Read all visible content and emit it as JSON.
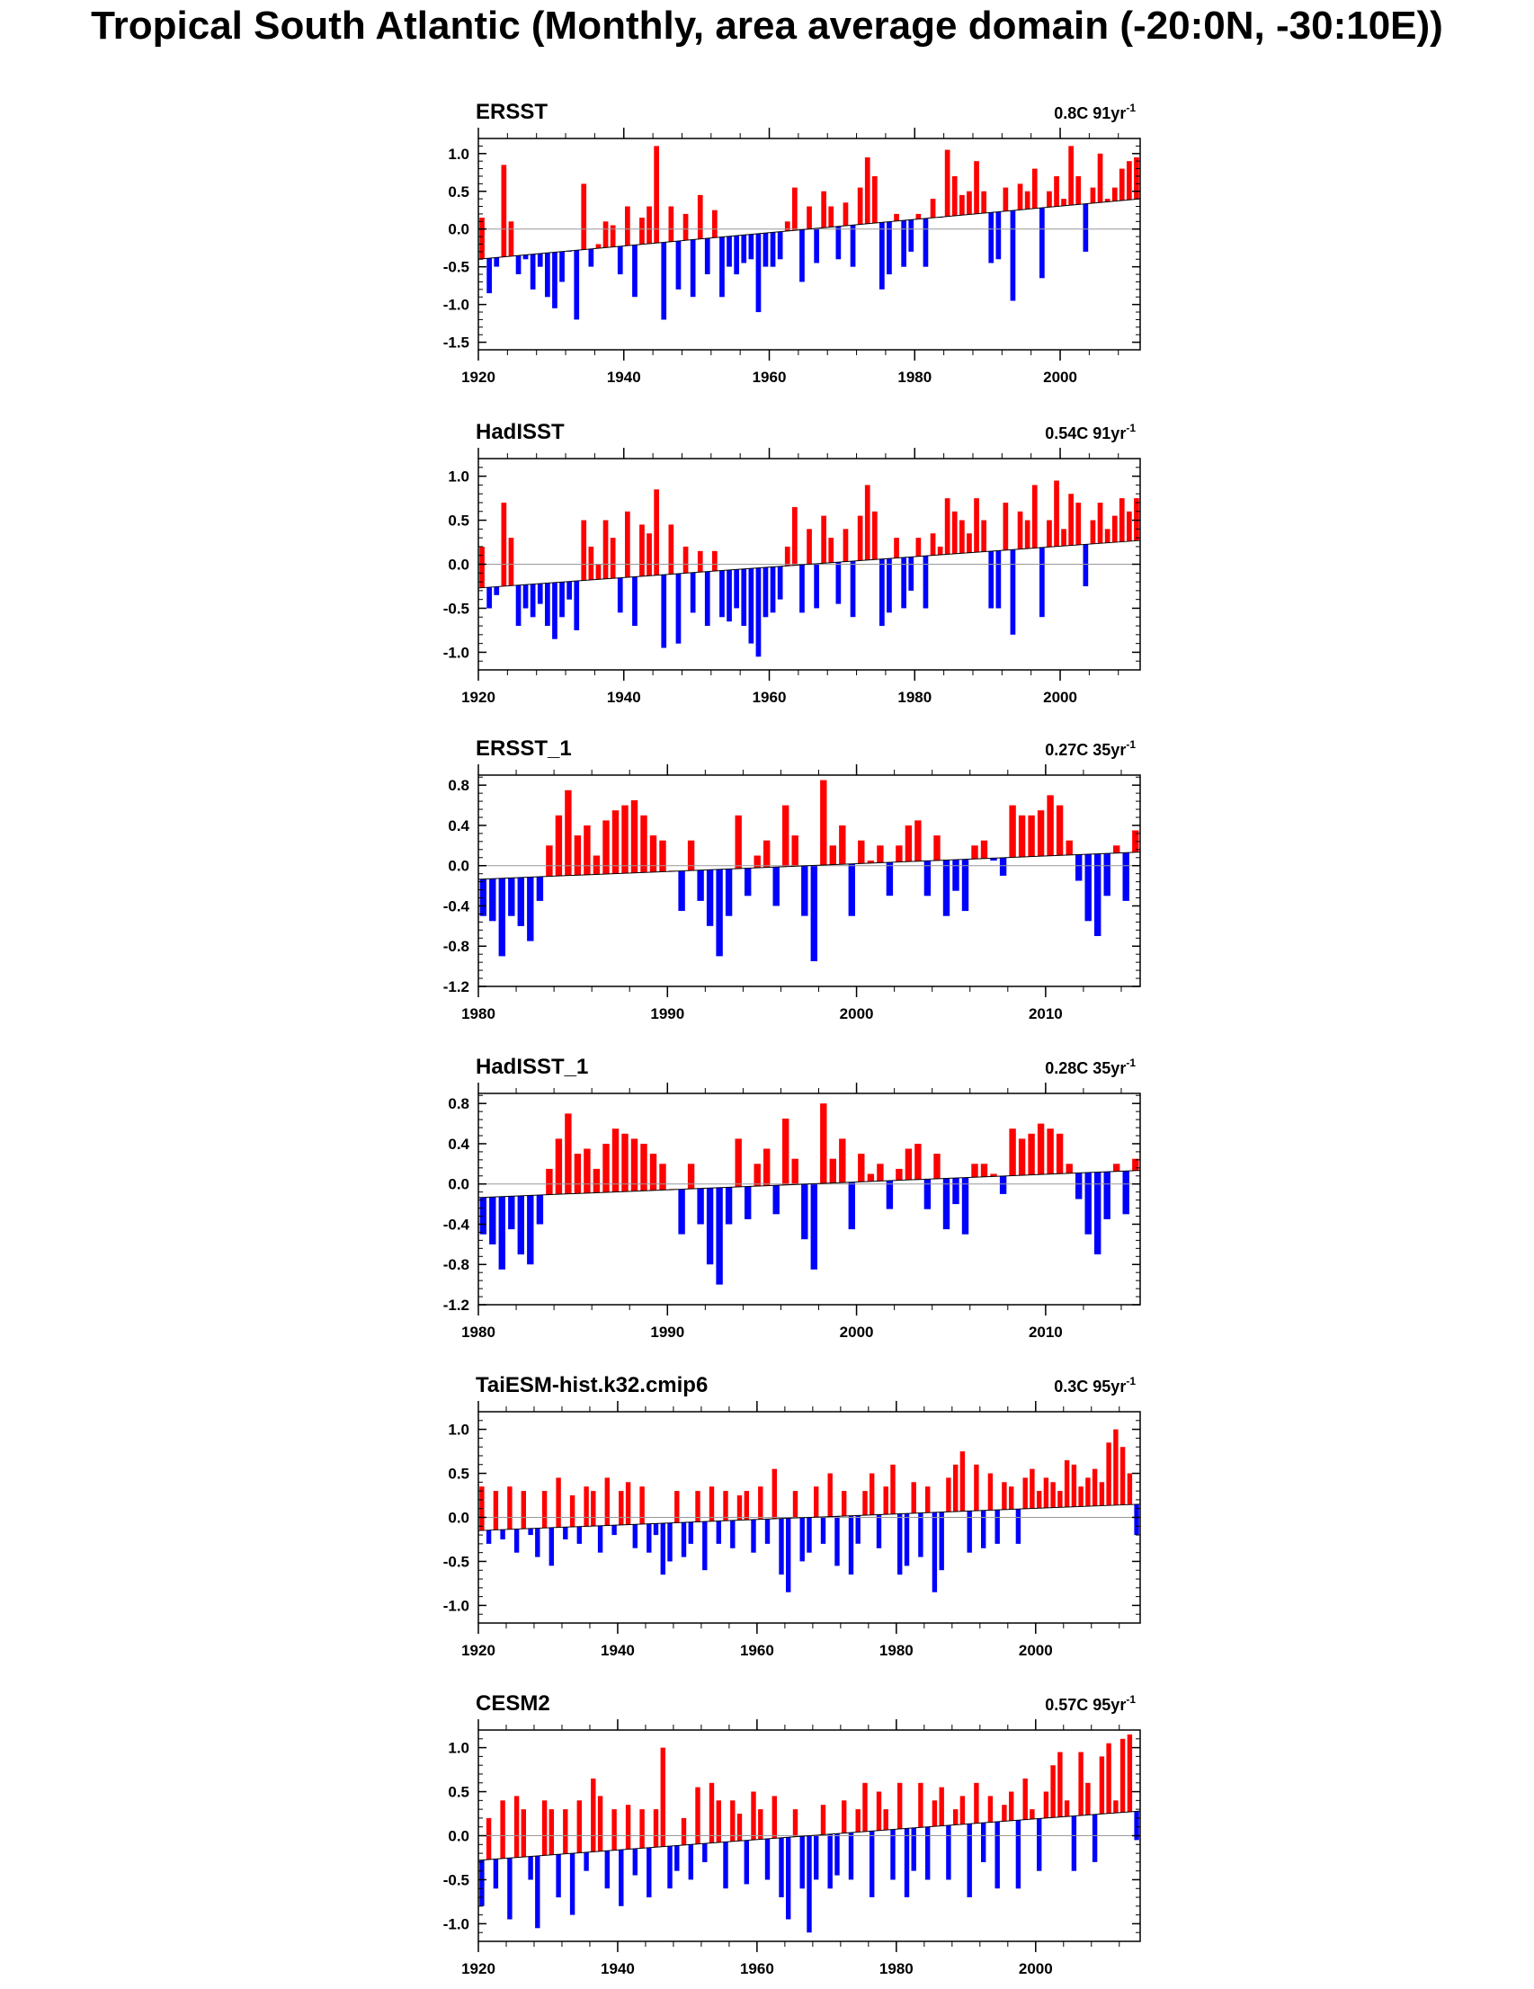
{
  "title": "Tropical South Atlantic (Monthly, area average domain (-20:0N, -30:10E))",
  "colors": {
    "positive": "#ff0000",
    "negative": "#0000ff",
    "trend": "#000000",
    "zero": "#999999"
  },
  "chart_data": [
    {
      "type": "bar",
      "title": "ERSST",
      "trend_value": "0.8C",
      "trend_period": "91yr",
      "trend_exp": "-1",
      "xlim": [
        1920,
        2011
      ],
      "ylim": [
        -1.6,
        1.2
      ],
      "xticks": [
        1920,
        1940,
        1960,
        1980,
        2000
      ],
      "yticks": [
        1.0,
        0.5,
        0.0,
        -0.5,
        -1.0,
        -1.5
      ],
      "ytick_labels": [
        "1.0",
        "0.5",
        "0.0",
        "-0.5",
        "-1.0",
        "-1.5"
      ],
      "ydec": 1,
      "trend_start": -0.4,
      "trend_end": 0.4,
      "x": [
        1920,
        1921,
        1922,
        1923,
        1924,
        1925,
        1926,
        1927,
        1928,
        1929,
        1930,
        1931,
        1932,
        1933,
        1934,
        1935,
        1936,
        1937,
        1938,
        1939,
        1940,
        1941,
        1942,
        1943,
        1944,
        1945,
        1946,
        1947,
        1948,
        1949,
        1950,
        1951,
        1952,
        1953,
        1954,
        1955,
        1956,
        1957,
        1958,
        1959,
        1960,
        1961,
        1962,
        1963,
        1964,
        1965,
        1966,
        1967,
        1968,
        1969,
        1970,
        1971,
        1972,
        1973,
        1974,
        1975,
        1976,
        1977,
        1978,
        1979,
        1980,
        1981,
        1982,
        1983,
        1984,
        1985,
        1986,
        1987,
        1988,
        1989,
        1990,
        1991,
        1992,
        1993,
        1994,
        1995,
        1996,
        1997,
        1998,
        1999,
        2000,
        2001,
        2002,
        2003,
        2004,
        2005,
        2006,
        2007,
        2008,
        2009,
        2010
      ],
      "values": [
        0.15,
        -0.85,
        -0.5,
        0.85,
        0.1,
        -0.6,
        -0.4,
        -0.8,
        -0.5,
        -0.9,
        -1.05,
        -0.7,
        -0.3,
        -1.2,
        0.6,
        -0.5,
        -0.2,
        0.1,
        0.05,
        -0.6,
        0.3,
        -0.9,
        0.15,
        0.3,
        1.1,
        -1.2,
        0.3,
        -0.8,
        0.2,
        -0.9,
        0.45,
        -0.6,
        0.25,
        -0.9,
        -0.5,
        -0.6,
        -0.45,
        -0.4,
        -1.1,
        -0.5,
        -0.5,
        -0.4,
        0.1,
        0.55,
        -0.7,
        0.3,
        -0.45,
        0.5,
        0.3,
        -0.4,
        0.35,
        -0.5,
        0.55,
        0.95,
        0.7,
        -0.8,
        -0.6,
        0.2,
        -0.5,
        -0.3,
        0.2,
        -0.5,
        0.4,
        0.15,
        1.05,
        0.7,
        0.45,
        0.5,
        0.9,
        0.5,
        -0.45,
        -0.4,
        0.55,
        -0.95,
        0.6,
        0.5,
        0.8,
        -0.65,
        0.5,
        0.7,
        0.4,
        1.1,
        0.7,
        -0.3,
        0.55,
        1.0,
        0.4,
        0.55,
        0.8,
        0.9,
        0.95
      ]
    },
    {
      "type": "bar",
      "title": "HadISST",
      "trend_value": "0.54C",
      "trend_period": "91yr",
      "trend_exp": "-1",
      "xlim": [
        1920,
        2011
      ],
      "ylim": [
        -1.2,
        1.2
      ],
      "xticks": [
        1920,
        1940,
        1960,
        1980,
        2000
      ],
      "yticks": [
        1.0,
        0.5,
        0.0,
        -0.5,
        -1.0
      ],
      "ytick_labels": [
        "1.0",
        "0.5",
        "0.0",
        "-0.5",
        "-1.0"
      ],
      "ydec": 1,
      "trend_start": -0.27,
      "trend_end": 0.27,
      "x": [
        1920,
        1921,
        1922,
        1923,
        1924,
        1925,
        1926,
        1927,
        1928,
        1929,
        1930,
        1931,
        1932,
        1933,
        1934,
        1935,
        1936,
        1937,
        1938,
        1939,
        1940,
        1941,
        1942,
        1943,
        1944,
        1945,
        1946,
        1947,
        1948,
        1949,
        1950,
        1951,
        1952,
        1953,
        1954,
        1955,
        1956,
        1957,
        1958,
        1959,
        1960,
        1961,
        1962,
        1963,
        1964,
        1965,
        1966,
        1967,
        1968,
        1969,
        1970,
        1971,
        1972,
        1973,
        1974,
        1975,
        1976,
        1977,
        1978,
        1979,
        1980,
        1981,
        1982,
        1983,
        1984,
        1985,
        1986,
        1987,
        1988,
        1989,
        1990,
        1991,
        1992,
        1993,
        1994,
        1995,
        1996,
        1997,
        1998,
        1999,
        2000,
        2001,
        2002,
        2003,
        2004,
        2005,
        2006,
        2007,
        2008,
        2009,
        2010
      ],
      "values": [
        0.2,
        -0.5,
        -0.35,
        0.7,
        0.3,
        -0.7,
        -0.5,
        -0.6,
        -0.45,
        -0.7,
        -0.85,
        -0.6,
        -0.4,
        -0.75,
        0.5,
        0.2,
        0.0,
        0.5,
        0.3,
        -0.55,
        0.6,
        -0.7,
        0.45,
        0.35,
        0.85,
        -0.95,
        0.45,
        -0.9,
        0.2,
        -0.55,
        0.15,
        -0.7,
        0.15,
        -0.6,
        -0.65,
        -0.5,
        -0.7,
        -0.9,
        -1.05,
        -0.6,
        -0.55,
        -0.4,
        0.2,
        0.65,
        -0.55,
        0.4,
        -0.5,
        0.55,
        0.3,
        -0.45,
        0.4,
        -0.6,
        0.55,
        0.9,
        0.6,
        -0.7,
        -0.55,
        0.3,
        -0.5,
        -0.3,
        0.3,
        -0.5,
        0.35,
        0.2,
        0.75,
        0.6,
        0.5,
        0.35,
        0.75,
        0.5,
        -0.5,
        -0.5,
        0.7,
        -0.8,
        0.6,
        0.5,
        0.9,
        -0.6,
        0.5,
        0.95,
        0.4,
        0.8,
        0.7,
        -0.25,
        0.5,
        0.7,
        0.4,
        0.55,
        0.75,
        0.6,
        0.75
      ]
    },
    {
      "type": "bar",
      "title": "ERSST_1",
      "trend_value": "0.27C",
      "trend_period": "35yr",
      "trend_exp": "-1",
      "xlim": [
        1980,
        2015
      ],
      "ylim": [
        -1.2,
        0.9
      ],
      "xticks": [
        1980,
        1990,
        2000,
        2010
      ],
      "yticks": [
        0.8,
        0.4,
        0.0,
        -0.4,
        -0.8,
        -1.2
      ],
      "ytick_labels": [
        "0.8",
        "0.4",
        "0.0",
        "-0.4",
        "-0.8",
        "-1.2"
      ],
      "ydec": 1,
      "trend_start": -0.135,
      "trend_end": 0.135,
      "x": [
        1980,
        1980.5,
        1981,
        1981.5,
        1982,
        1982.5,
        1983,
        1983.5,
        1984,
        1984.5,
        1985,
        1985.5,
        1986,
        1986.5,
        1987,
        1987.5,
        1988,
        1988.5,
        1989,
        1989.5,
        1990,
        1990.5,
        1991,
        1991.5,
        1992,
        1992.5,
        1993,
        1993.5,
        1994,
        1994.5,
        1995,
        1995.5,
        1996,
        1996.5,
        1997,
        1997.5,
        1998,
        1998.5,
        1999,
        1999.5,
        2000,
        2000.5,
        2001,
        2001.5,
        2002,
        2002.5,
        2003,
        2003.5,
        2004,
        2004.5,
        2005,
        2005.5,
        2006,
        2006.5,
        2007,
        2007.5,
        2008,
        2008.5,
        2009,
        2009.5,
        2010,
        2010.5,
        2011,
        2011.5,
        2012,
        2012.5,
        2013,
        2013.5,
        2014,
        2014.5
      ],
      "values": [
        -0.5,
        -0.55,
        -0.9,
        -0.5,
        -0.6,
        -0.75,
        -0.35,
        0.2,
        0.5,
        0.75,
        0.3,
        0.4,
        0.1,
        0.45,
        0.55,
        0.6,
        0.65,
        0.5,
        0.3,
        0.25,
        -0.05,
        -0.45,
        0.25,
        -0.35,
        -0.6,
        -0.9,
        -0.5,
        0.5,
        -0.3,
        0.1,
        0.25,
        -0.4,
        0.6,
        0.3,
        -0.5,
        -0.95,
        0.85,
        0.2,
        0.4,
        -0.5,
        0.25,
        0.05,
        0.2,
        -0.3,
        0.2,
        0.4,
        0.45,
        -0.3,
        0.3,
        -0.5,
        -0.25,
        -0.45,
        0.2,
        0.25,
        0.05,
        -0.1,
        0.6,
        0.5,
        0.5,
        0.55,
        0.7,
        0.6,
        0.25,
        -0.15,
        -0.55,
        -0.7,
        -0.3,
        0.2,
        -0.35,
        0.35
      ]
    },
    {
      "type": "bar",
      "title": "HadISST_1",
      "trend_value": "0.28C",
      "trend_period": "35yr",
      "trend_exp": "-1",
      "xlim": [
        1980,
        2015
      ],
      "ylim": [
        -1.2,
        0.9
      ],
      "xticks": [
        1980,
        1990,
        2000,
        2010
      ],
      "yticks": [
        0.8,
        0.4,
        0.0,
        -0.4,
        -0.8,
        -1.2
      ],
      "ytick_labels": [
        "0.8",
        "0.4",
        "0.0",
        "-0.4",
        "-0.8",
        "-1.2"
      ],
      "ydec": 1,
      "trend_start": -0.135,
      "trend_end": 0.135,
      "x": [
        1980,
        1980.5,
        1981,
        1981.5,
        1982,
        1982.5,
        1983,
        1983.5,
        1984,
        1984.5,
        1985,
        1985.5,
        1986,
        1986.5,
        1987,
        1987.5,
        1988,
        1988.5,
        1989,
        1989.5,
        1990,
        1990.5,
        1991,
        1991.5,
        1992,
        1992.5,
        1993,
        1993.5,
        1994,
        1994.5,
        1995,
        1995.5,
        1996,
        1996.5,
        1997,
        1997.5,
        1998,
        1998.5,
        1999,
        1999.5,
        2000,
        2000.5,
        2001,
        2001.5,
        2002,
        2002.5,
        2003,
        2003.5,
        2004,
        2004.5,
        2005,
        2005.5,
        2006,
        2006.5,
        2007,
        2007.5,
        2008,
        2008.5,
        2009,
        2009.5,
        2010,
        2010.5,
        2011,
        2011.5,
        2012,
        2012.5,
        2013,
        2013.5,
        2014,
        2014.5
      ],
      "values": [
        -0.5,
        -0.6,
        -0.85,
        -0.45,
        -0.7,
        -0.8,
        -0.4,
        0.15,
        0.45,
        0.7,
        0.3,
        0.35,
        0.15,
        0.4,
        0.55,
        0.5,
        0.45,
        0.4,
        0.3,
        0.2,
        -0.05,
        -0.5,
        0.2,
        -0.4,
        -0.8,
        -1.0,
        -0.4,
        0.45,
        -0.35,
        0.2,
        0.35,
        -0.3,
        0.65,
        0.25,
        -0.55,
        -0.85,
        0.8,
        0.25,
        0.45,
        -0.45,
        0.3,
        0.1,
        0.2,
        -0.25,
        0.15,
        0.35,
        0.4,
        -0.25,
        0.3,
        -0.45,
        -0.2,
        -0.5,
        0.2,
        0.2,
        0.1,
        -0.1,
        0.55,
        0.45,
        0.5,
        0.6,
        0.55,
        0.5,
        0.2,
        -0.15,
        -0.5,
        -0.7,
        -0.35,
        0.2,
        -0.3,
        0.25
      ]
    },
    {
      "type": "bar",
      "title": "TaiESM-hist.k32.cmip6",
      "trend_value": "0.3C",
      "trend_period": "95yr",
      "trend_exp": "-1",
      "xlim": [
        1920,
        2015
      ],
      "ylim": [
        -1.2,
        1.2
      ],
      "xticks": [
        1920,
        1940,
        1960,
        1980,
        2000
      ],
      "yticks": [
        1.0,
        0.5,
        0.0,
        -0.5,
        -1.0
      ],
      "ytick_labels": [
        "1.0",
        "0.5",
        "0.0",
        "-0.5",
        "-1.0"
      ],
      "ydec": 1,
      "trend_start": -0.15,
      "trend_end": 0.15,
      "x": [
        1920,
        1921,
        1922,
        1923,
        1924,
        1925,
        1926,
        1927,
        1928,
        1929,
        1930,
        1931,
        1932,
        1933,
        1934,
        1935,
        1936,
        1937,
        1938,
        1939,
        1940,
        1941,
        1942,
        1943,
        1944,
        1945,
        1946,
        1947,
        1948,
        1949,
        1950,
        1951,
        1952,
        1953,
        1954,
        1955,
        1956,
        1957,
        1958,
        1959,
        1960,
        1961,
        1962,
        1963,
        1964,
        1965,
        1966,
        1967,
        1968,
        1969,
        1970,
        1971,
        1972,
        1973,
        1974,
        1975,
        1976,
        1977,
        1978,
        1979,
        1980,
        1981,
        1982,
        1983,
        1984,
        1985,
        1986,
        1987,
        1988,
        1989,
        1990,
        1991,
        1992,
        1993,
        1994,
        1995,
        1996,
        1997,
        1998,
        1999,
        2000,
        2001,
        2002,
        2003,
        2004,
        2005,
        2006,
        2007,
        2008,
        2009,
        2010,
        2011,
        2012,
        2013,
        2014
      ],
      "values": [
        0.35,
        -0.3,
        0.3,
        -0.25,
        0.35,
        -0.4,
        0.3,
        -0.2,
        -0.45,
        0.3,
        -0.55,
        0.45,
        -0.25,
        0.25,
        -0.3,
        0.35,
        0.3,
        -0.4,
        0.45,
        -0.2,
        0.3,
        0.4,
        -0.35,
        0.35,
        -0.4,
        -0.2,
        -0.65,
        -0.5,
        0.3,
        -0.45,
        -0.3,
        0.3,
        -0.6,
        0.35,
        -0.3,
        0.3,
        -0.35,
        0.25,
        0.3,
        -0.4,
        0.35,
        -0.3,
        0.55,
        -0.65,
        -0.85,
        0.3,
        -0.5,
        -0.4,
        0.35,
        -0.3,
        0.5,
        -0.55,
        0.3,
        -0.65,
        -0.3,
        0.3,
        0.5,
        -0.35,
        0.35,
        0.6,
        -0.65,
        -0.55,
        0.4,
        -0.45,
        0.35,
        -0.85,
        -0.6,
        0.45,
        0.6,
        0.75,
        -0.4,
        0.6,
        -0.35,
        0.5,
        -0.3,
        0.4,
        0.35,
        -0.3,
        0.45,
        0.55,
        0.3,
        0.45,
        0.4,
        0.3,
        0.65,
        0.6,
        0.35,
        0.45,
        0.55,
        0.4,
        0.85,
        1.0,
        0.8,
        0.5,
        -0.2
      ]
    },
    {
      "type": "bar",
      "title": "CESM2",
      "trend_value": "0.57C",
      "trend_period": "95yr",
      "trend_exp": "-1",
      "xlim": [
        1920,
        2015
      ],
      "ylim": [
        -1.2,
        1.2
      ],
      "xticks": [
        1920,
        1940,
        1960,
        1980,
        2000
      ],
      "yticks": [
        1.0,
        0.5,
        0.0,
        -0.5,
        -1.0
      ],
      "ytick_labels": [
        "1.0",
        "0.5",
        "0.0",
        "-0.5",
        "-1.0"
      ],
      "ydec": 1,
      "trend_start": -0.28,
      "trend_end": 0.28,
      "x": [
        1920,
        1921,
        1922,
        1923,
        1924,
        1925,
        1926,
        1927,
        1928,
        1929,
        1930,
        1931,
        1932,
        1933,
        1934,
        1935,
        1936,
        1937,
        1938,
        1939,
        1940,
        1941,
        1942,
        1943,
        1944,
        1945,
        1946,
        1947,
        1948,
        1949,
        1950,
        1951,
        1952,
        1953,
        1954,
        1955,
        1956,
        1957,
        1958,
        1959,
        1960,
        1961,
        1962,
        1963,
        1964,
        1965,
        1966,
        1967,
        1968,
        1969,
        1970,
        1971,
        1972,
        1973,
        1974,
        1975,
        1976,
        1977,
        1978,
        1979,
        1980,
        1981,
        1982,
        1983,
        1984,
        1985,
        1986,
        1987,
        1988,
        1989,
        1990,
        1991,
        1992,
        1993,
        1994,
        1995,
        1996,
        1997,
        1998,
        1999,
        2000,
        2001,
        2002,
        2003,
        2004,
        2005,
        2006,
        2007,
        2008,
        2009,
        2010,
        2011,
        2012,
        2013,
        2014
      ],
      "values": [
        -0.8,
        0.2,
        -0.6,
        0.4,
        -0.95,
        0.45,
        0.3,
        -0.5,
        -1.05,
        0.4,
        0.3,
        -0.7,
        0.3,
        -0.9,
        0.4,
        -0.4,
        0.65,
        0.45,
        -0.6,
        0.3,
        -0.8,
        0.35,
        -0.45,
        0.3,
        -0.7,
        0.3,
        1.0,
        -0.6,
        -0.4,
        0.2,
        -0.5,
        0.55,
        -0.3,
        0.6,
        0.4,
        -0.6,
        0.4,
        0.25,
        -0.55,
        0.5,
        0.3,
        -0.5,
        0.45,
        -0.7,
        -0.95,
        0.3,
        -0.6,
        -1.1,
        -0.5,
        0.35,
        -0.6,
        -0.45,
        0.4,
        -0.5,
        0.3,
        0.6,
        -0.7,
        0.5,
        0.3,
        -0.5,
        0.6,
        -0.7,
        -0.4,
        0.6,
        -0.5,
        0.4,
        0.55,
        -0.5,
        0.3,
        0.45,
        -0.7,
        0.6,
        -0.3,
        0.45,
        -0.6,
        0.35,
        0.5,
        -0.6,
        0.65,
        0.3,
        -0.4,
        0.5,
        0.8,
        0.95,
        0.4,
        -0.4,
        0.95,
        0.6,
        -0.3,
        0.9,
        1.05,
        0.4,
        1.1,
        1.15,
        -0.05
      ]
    }
  ]
}
